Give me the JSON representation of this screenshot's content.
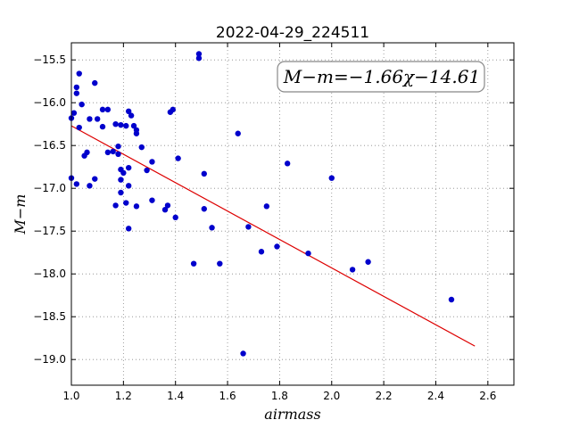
{
  "chart_data": {
    "type": "scatter",
    "title": "2022-04-29_224511",
    "xlabel": "airmass",
    "ylabel": "M−m",
    "xlim": [
      1.0,
      2.7
    ],
    "ylim": [
      -19.3,
      -15.3
    ],
    "ylim_inverted": true,
    "x_ticks": [
      1.0,
      1.2,
      1.4,
      1.6,
      1.8,
      2.0,
      2.2,
      2.4,
      2.6
    ],
    "x_tick_labels": [
      "1.0",
      "1.2",
      "1.4",
      "1.6",
      "1.8",
      "2.0",
      "2.2",
      "2.4",
      "2.6"
    ],
    "y_ticks": [
      -15.5,
      -16.0,
      -16.5,
      -17.0,
      -17.5,
      -18.0,
      -18.5,
      -19.0
    ],
    "y_tick_labels": [
      "−15.5",
      "−16.0",
      "−16.5",
      "−17.0",
      "−17.5",
      "−18.0",
      "−18.5",
      "−19.0"
    ],
    "grid": true,
    "annotation": "M−m=−1.66χ−14.61",
    "colors": {
      "points": "#0000cc",
      "fit_line": "#dd0000",
      "grid": "#888888"
    },
    "fit": {
      "slope": -1.66,
      "intercept": -14.61,
      "x_range": [
        1.0,
        2.55
      ]
    },
    "points": [
      {
        "x": 1.0,
        "y": -16.18
      },
      {
        "x": 1.0,
        "y": -16.88
      },
      {
        "x": 1.01,
        "y": -16.12
      },
      {
        "x": 1.02,
        "y": -15.82
      },
      {
        "x": 1.02,
        "y": -15.89
      },
      {
        "x": 1.02,
        "y": -16.95
      },
      {
        "x": 1.03,
        "y": -15.66
      },
      {
        "x": 1.03,
        "y": -16.29
      },
      {
        "x": 1.04,
        "y": -16.02
      },
      {
        "x": 1.05,
        "y": -16.62
      },
      {
        "x": 1.06,
        "y": -16.58
      },
      {
        "x": 1.07,
        "y": -16.19
      },
      {
        "x": 1.07,
        "y": -16.97
      },
      {
        "x": 1.09,
        "y": -15.77
      },
      {
        "x": 1.09,
        "y": -16.89
      },
      {
        "x": 1.1,
        "y": -16.19
      },
      {
        "x": 1.12,
        "y": -16.08
      },
      {
        "x": 1.12,
        "y": -16.28
      },
      {
        "x": 1.14,
        "y": -16.08
      },
      {
        "x": 1.14,
        "y": -16.58
      },
      {
        "x": 1.16,
        "y": -16.57
      },
      {
        "x": 1.17,
        "y": -16.25
      },
      {
        "x": 1.17,
        "y": -17.2
      },
      {
        "x": 1.18,
        "y": -16.51
      },
      {
        "x": 1.18,
        "y": -16.6
      },
      {
        "x": 1.19,
        "y": -16.26
      },
      {
        "x": 1.19,
        "y": -16.78
      },
      {
        "x": 1.19,
        "y": -16.9
      },
      {
        "x": 1.19,
        "y": -17.05
      },
      {
        "x": 1.2,
        "y": -16.82
      },
      {
        "x": 1.21,
        "y": -16.27
      },
      {
        "x": 1.21,
        "y": -17.17
      },
      {
        "x": 1.22,
        "y": -16.1
      },
      {
        "x": 1.22,
        "y": -16.97
      },
      {
        "x": 1.22,
        "y": -17.47
      },
      {
        "x": 1.22,
        "y": -16.76
      },
      {
        "x": 1.23,
        "y": -16.15
      },
      {
        "x": 1.24,
        "y": -16.27
      },
      {
        "x": 1.25,
        "y": -16.32
      },
      {
        "x": 1.25,
        "y": -16.36
      },
      {
        "x": 1.25,
        "y": -17.21
      },
      {
        "x": 1.27,
        "y": -16.52
      },
      {
        "x": 1.29,
        "y": -16.79
      },
      {
        "x": 1.31,
        "y": -16.69
      },
      {
        "x": 1.31,
        "y": -17.14
      },
      {
        "x": 1.36,
        "y": -17.25
      },
      {
        "x": 1.37,
        "y": -17.2
      },
      {
        "x": 1.38,
        "y": -16.11
      },
      {
        "x": 1.39,
        "y": -16.08
      },
      {
        "x": 1.4,
        "y": -17.34
      },
      {
        "x": 1.41,
        "y": -16.65
      },
      {
        "x": 1.47,
        "y": -17.88
      },
      {
        "x": 1.49,
        "y": -15.43
      },
      {
        "x": 1.49,
        "y": -15.48
      },
      {
        "x": 1.51,
        "y": -16.83
      },
      {
        "x": 1.51,
        "y": -17.24
      },
      {
        "x": 1.54,
        "y": -17.46
      },
      {
        "x": 1.57,
        "y": -17.88
      },
      {
        "x": 1.64,
        "y": -16.36
      },
      {
        "x": 1.66,
        "y": -18.93
      },
      {
        "x": 1.68,
        "y": -17.45
      },
      {
        "x": 1.73,
        "y": -17.74
      },
      {
        "x": 1.75,
        "y": -17.21
      },
      {
        "x": 1.79,
        "y": -17.68
      },
      {
        "x": 1.83,
        "y": -16.71
      },
      {
        "x": 1.91,
        "y": -17.76
      },
      {
        "x": 2.0,
        "y": -16.88
      },
      {
        "x": 2.08,
        "y": -17.95
      },
      {
        "x": 2.14,
        "y": -17.86
      },
      {
        "x": 2.46,
        "y": -18.3
      }
    ]
  }
}
